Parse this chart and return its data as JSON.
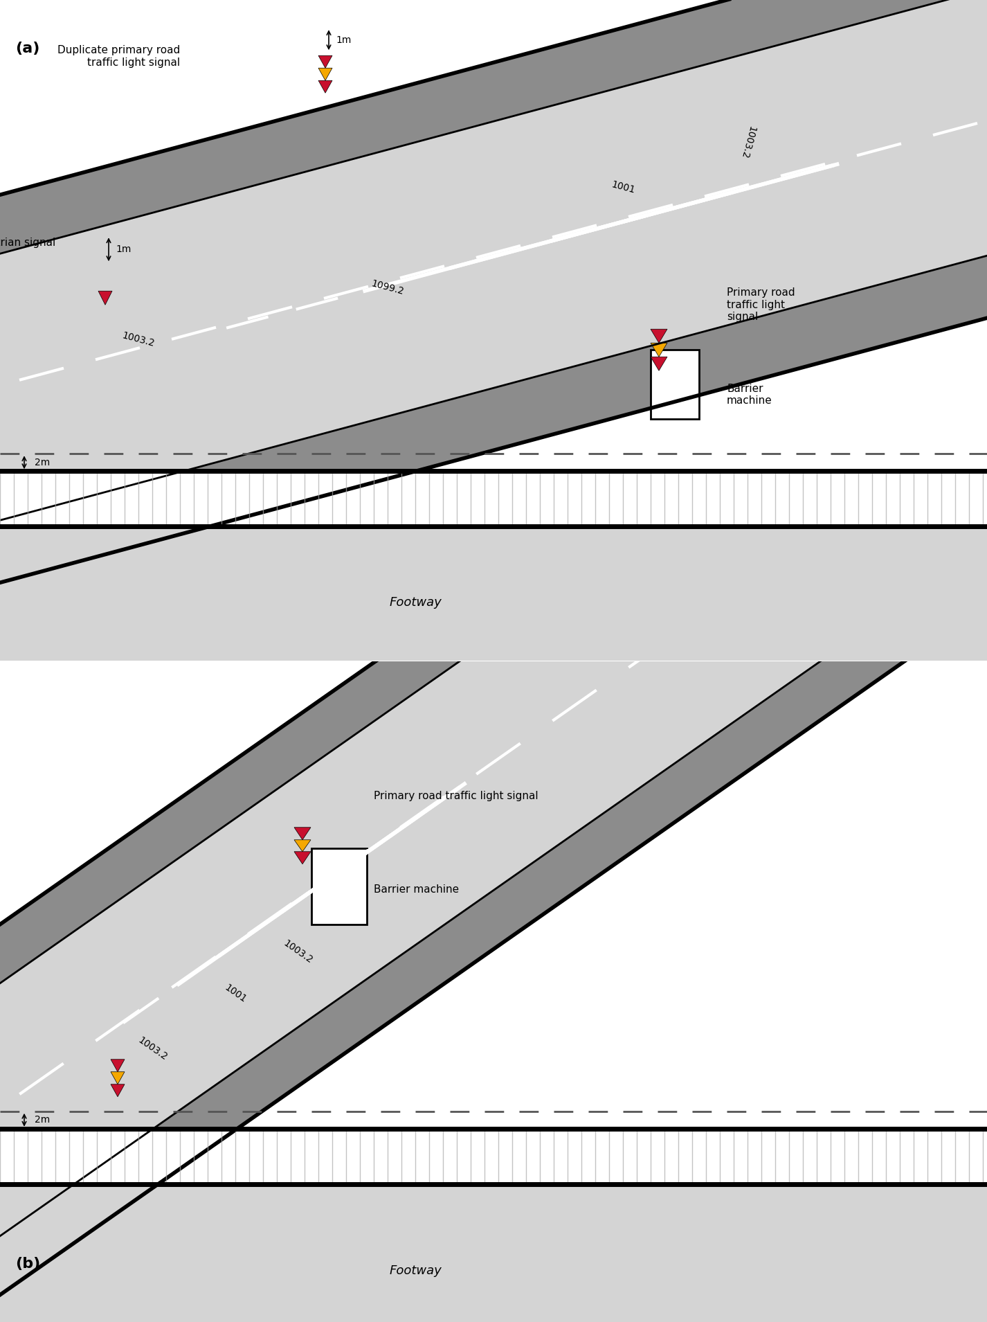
{
  "bg_color": "#ffffff",
  "road_light_gray": "#d4d4d4",
  "road_dark_gray": "#8c8c8c",
  "road_medium_gray": "#b0b0b0",
  "road_edge_dark": "#5a5a5a",
  "black": "#000000",
  "white": "#ffffff",
  "red": "#c8102e",
  "yellow": "#f5a800",
  "hatching_gray": "#c8c8c8",
  "panel_a_label": "(a)",
  "panel_b_label": "(b)",
  "label_dup_signal": "Duplicate primary road\ntraffic light signal",
  "label_ped_signal": "Pedestrian signal",
  "label_primary_signal_a": "Primary road\ntraffic light\nsignal",
  "label_barrier_a": "Barrier\nmachine",
  "label_primary_signal_b": "Primary road traffic light signal",
  "label_barrier_b": "Barrier machine",
  "label_footway_a": "Footway",
  "label_footway_b": "Footway",
  "label_1m_top": "1m",
  "label_1m_left": "1m",
  "label_2m_a": "2m",
  "label_2m_b": "2m",
  "label_1003_2_a1": "1003.2",
  "label_1003_2_a2": "1003.2",
  "label_1003_2_a3": "1003.2",
  "label_1099_2": "1099.2",
  "label_1001_a": "1001",
  "label_1003_2_b1": "1003.2",
  "label_1001_b": "1001",
  "label_1003_2_b2": "1003.2"
}
